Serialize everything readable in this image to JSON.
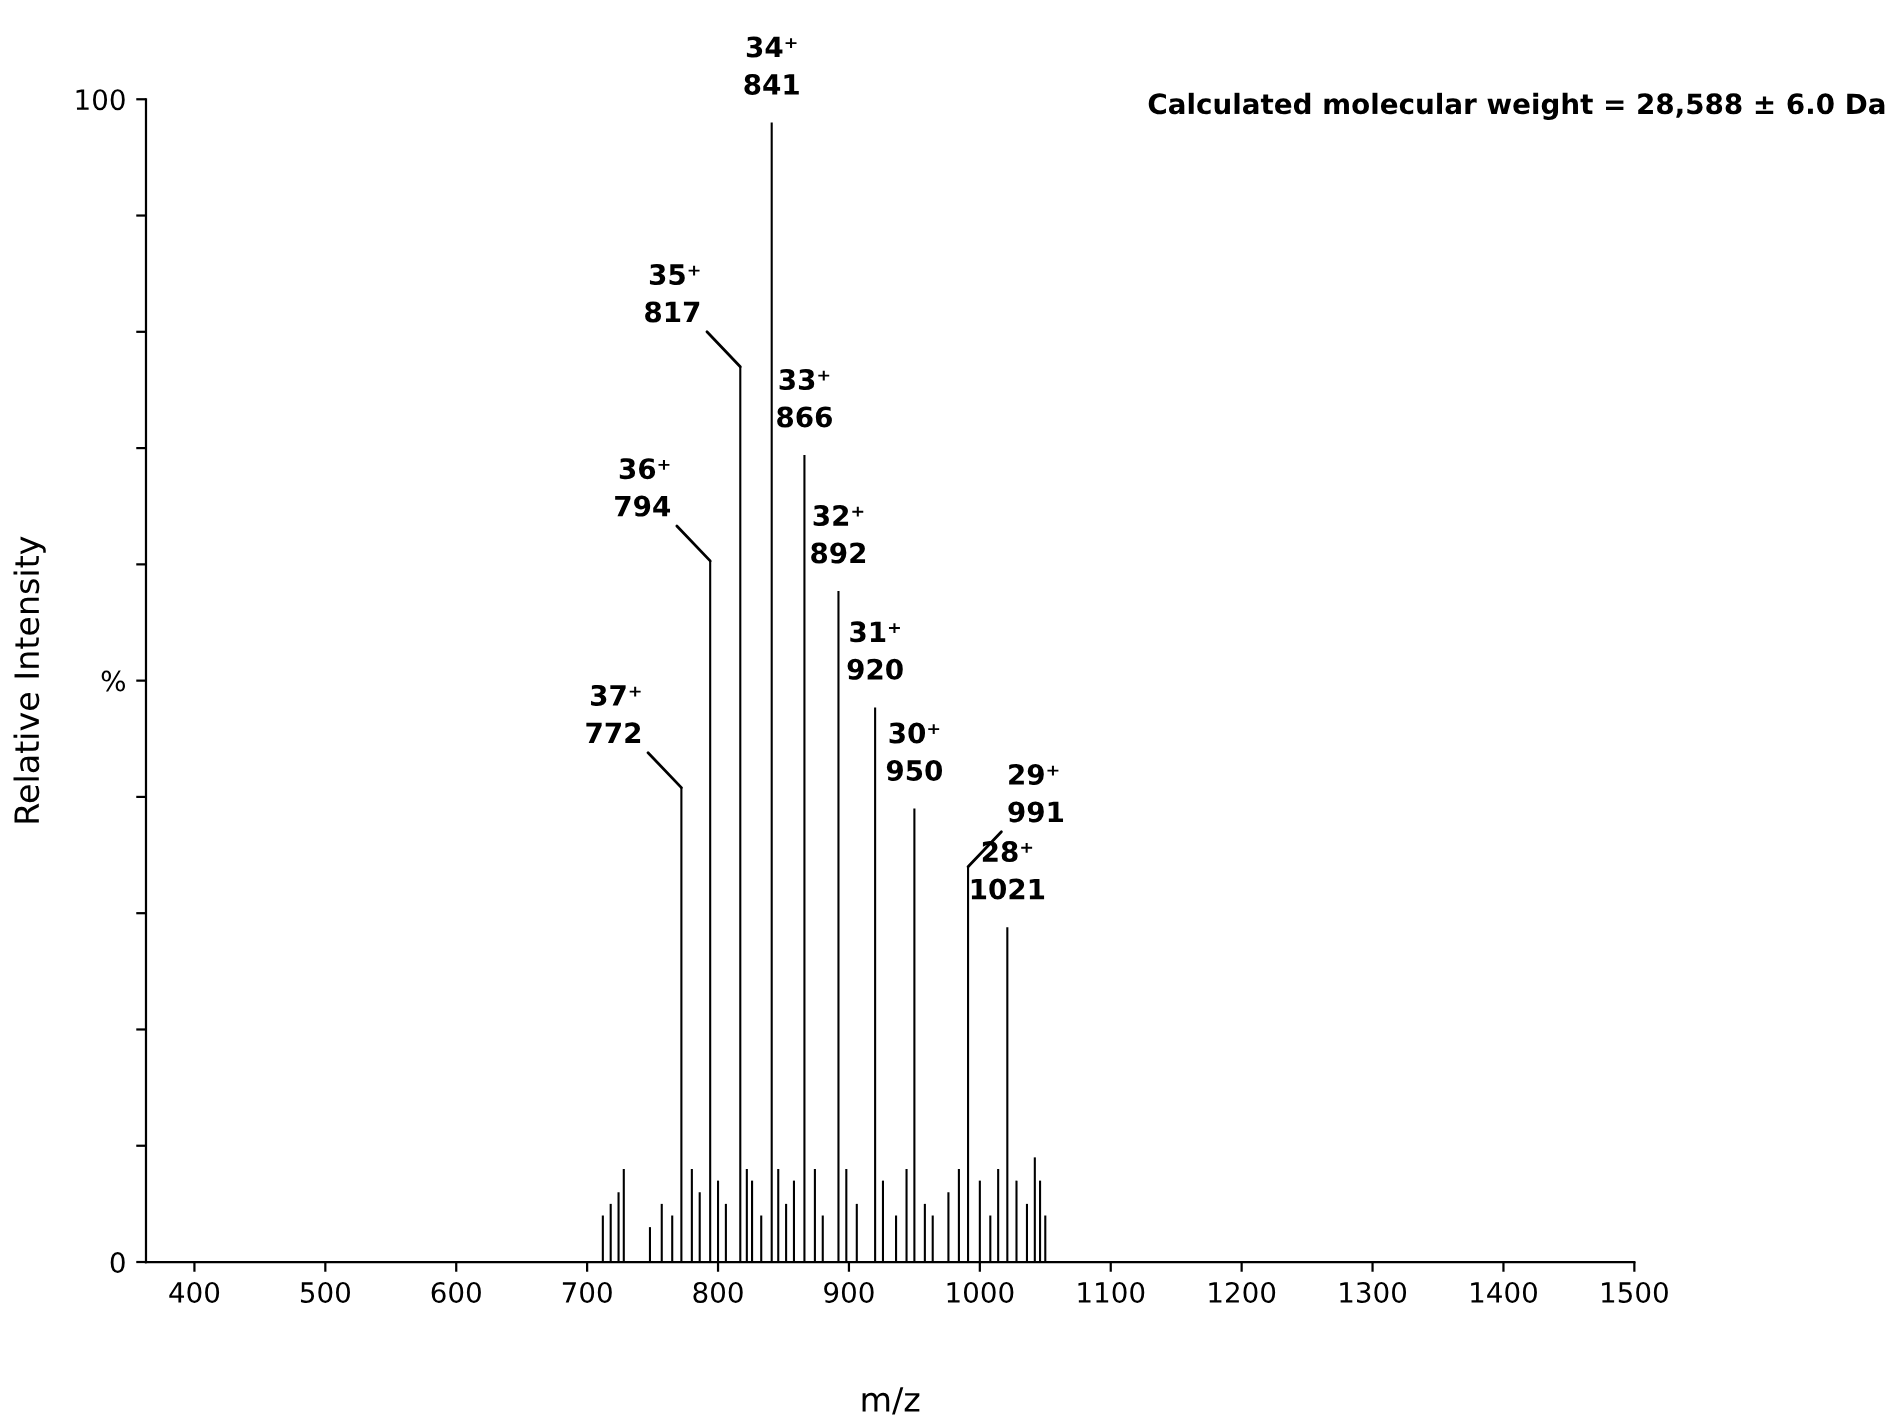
{
  "chart_data": {
    "type": "bar",
    "xlabel": "m/z",
    "ylabel": "Relative Intensity",
    "xlim": [
      363,
      1500
    ],
    "xticks": [
      400,
      500,
      600,
      700,
      800,
      900,
      1000,
      1100,
      1200,
      1300,
      1400,
      1500
    ],
    "ylim": [
      0,
      100
    ],
    "yticks": [
      0,
      {
        "value": 10,
        "label": null
      },
      {
        "value": 20,
        "label": null
      },
      {
        "value": 30,
        "label": null
      },
      {
        "value": 40,
        "label": null
      },
      {
        "value": 50,
        "label": "%"
      },
      {
        "value": 60,
        "label": null
      },
      {
        "value": 70,
        "label": null
      },
      {
        "value": 80,
        "label": null
      },
      {
        "value": 90,
        "label": null
      },
      100
    ],
    "grid": false,
    "legend": false,
    "series": [
      {
        "color": "#000000",
        "x": [
          712,
          718,
          724,
          728,
          748,
          757,
          765,
          772,
          780,
          786,
          794,
          800,
          806,
          817,
          822,
          826,
          833,
          841,
          846,
          852,
          858,
          866,
          874,
          880,
          892,
          898,
          906,
          920,
          926,
          936,
          944,
          950,
          958,
          964,
          976,
          984,
          991,
          1000,
          1008,
          1014,
          1021,
          1028,
          1036,
          1042,
          1046,
          1050
        ],
        "values": [
          4,
          5,
          6,
          8,
          3,
          5,
          4,
          40.8,
          8,
          6,
          60.3,
          7,
          5,
          77,
          8,
          7,
          4,
          98,
          8,
          5,
          7,
          69.4,
          8,
          4,
          57.7,
          8,
          5,
          47.7,
          7,
          4,
          8,
          39,
          5,
          4,
          6,
          8,
          34,
          7,
          4,
          8,
          28.8,
          7,
          5,
          9,
          7,
          4
        ]
      }
    ],
    "annotations": [
      {
        "text": "37⁺\n772",
        "x": 772,
        "y": 40.8
      },
      {
        "text": "36⁺\n794",
        "x": 794,
        "y": 60.3
      },
      {
        "text": "35⁺\n817",
        "x": 817,
        "y": 77
      },
      {
        "text": "34⁺\n841",
        "x": 841,
        "y": 98
      },
      {
        "text": "33⁺\n866",
        "x": 866,
        "y": 69.4
      },
      {
        "text": "32⁺\n892",
        "x": 892,
        "y": 57.7
      },
      {
        "text": "31⁺\n920",
        "x": 920,
        "y": 47.7
      },
      {
        "text": "30⁺\n950",
        "x": 950,
        "y": 39
      },
      {
        "text": "29⁺\n991",
        "x": 991,
        "y": 34
      },
      {
        "text": "28⁺\n1021",
        "x": 1021,
        "y": 28.8
      },
      "Calculated molecular weight = 28,588 ± 6.0 Da"
    ]
  }
}
